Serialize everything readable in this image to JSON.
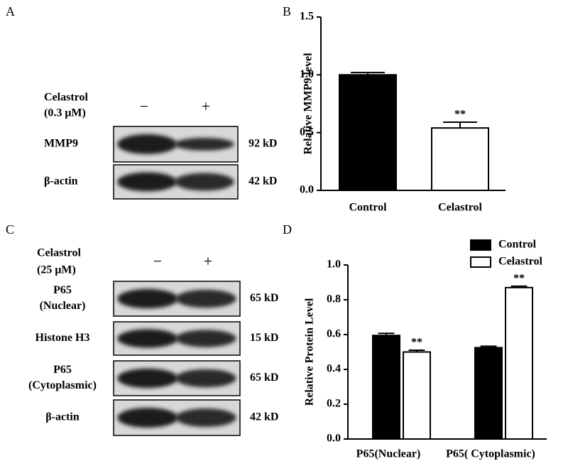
{
  "panel_labels": [
    "A",
    "B",
    "C",
    "D"
  ],
  "blots": [
    {
      "treatment": "Celastrol",
      "dose": "(0.3 μM)",
      "lanes": [
        "−",
        "+"
      ],
      "rows": [
        {
          "label": [
            "MMP9"
          ],
          "size": "92 kD"
        },
        {
          "label": [
            "β-actin"
          ],
          "size": "42 kD"
        }
      ]
    },
    {
      "treatment": "Celastrol",
      "dose": "(25 μM)",
      "lanes": [
        "−",
        "+"
      ],
      "rows": [
        {
          "label": [
            "P65",
            "(Nuclear)"
          ],
          "size": "65 kD"
        },
        {
          "label": [
            "Histone H3"
          ],
          "size": "15 kD"
        },
        {
          "label": [
            "P65",
            "(Cytoplasmic)"
          ],
          "size": "65 kD"
        },
        {
          "label": [
            "β-actin"
          ],
          "size": "42 kD"
        }
      ]
    }
  ],
  "chart_data": [
    {
      "type": "bar",
      "ylabel": "Relative MMP9 level",
      "categories": [
        "Control",
        "Celastrol"
      ],
      "values": [
        1.0,
        0.54
      ],
      "errors": [
        0.02,
        0.05
      ],
      "significance": [
        null,
        "**"
      ],
      "colors": [
        "#000000",
        "#ffffff"
      ],
      "edge_color": "#000000",
      "ylim": [
        0,
        1.5
      ],
      "yticks": [
        {
          "value": 0,
          "label": "0.0"
        },
        {
          "value": 0.5,
          "label": "0.5"
        },
        {
          "value": 1,
          "label": "1.0"
        },
        {
          "value": 1.5,
          "label": "1.5"
        }
      ]
    },
    {
      "type": "grouped_bar",
      "ylabel": "Relative Protein  Level",
      "categories": [
        "P65(Nuclear)",
        "P65( Cytoplasmic)"
      ],
      "series": [
        {
          "name": "Control",
          "color": "#000000",
          "values": [
            0.595,
            0.525
          ],
          "errors": [
            0.012,
            0.008
          ]
        },
        {
          "name": "Celastrol",
          "color": "#ffffff",
          "values": [
            0.5,
            0.87
          ],
          "errors": [
            0.01,
            0.008
          ],
          "significance": [
            "**",
            "**"
          ]
        }
      ],
      "edge_color": "#000000",
      "legend": "top right",
      "ylim": [
        0,
        1.0
      ],
      "yticks": [
        {
          "value": 0,
          "label": "0.0"
        },
        {
          "value": 0.2,
          "label": "0.2"
        },
        {
          "value": 0.4,
          "label": "0.4"
        },
        {
          "value": 0.6,
          "label": "0.6"
        },
        {
          "value": 0.8,
          "label": "0.8"
        },
        {
          "value": 1,
          "label": "1.0"
        }
      ]
    }
  ]
}
